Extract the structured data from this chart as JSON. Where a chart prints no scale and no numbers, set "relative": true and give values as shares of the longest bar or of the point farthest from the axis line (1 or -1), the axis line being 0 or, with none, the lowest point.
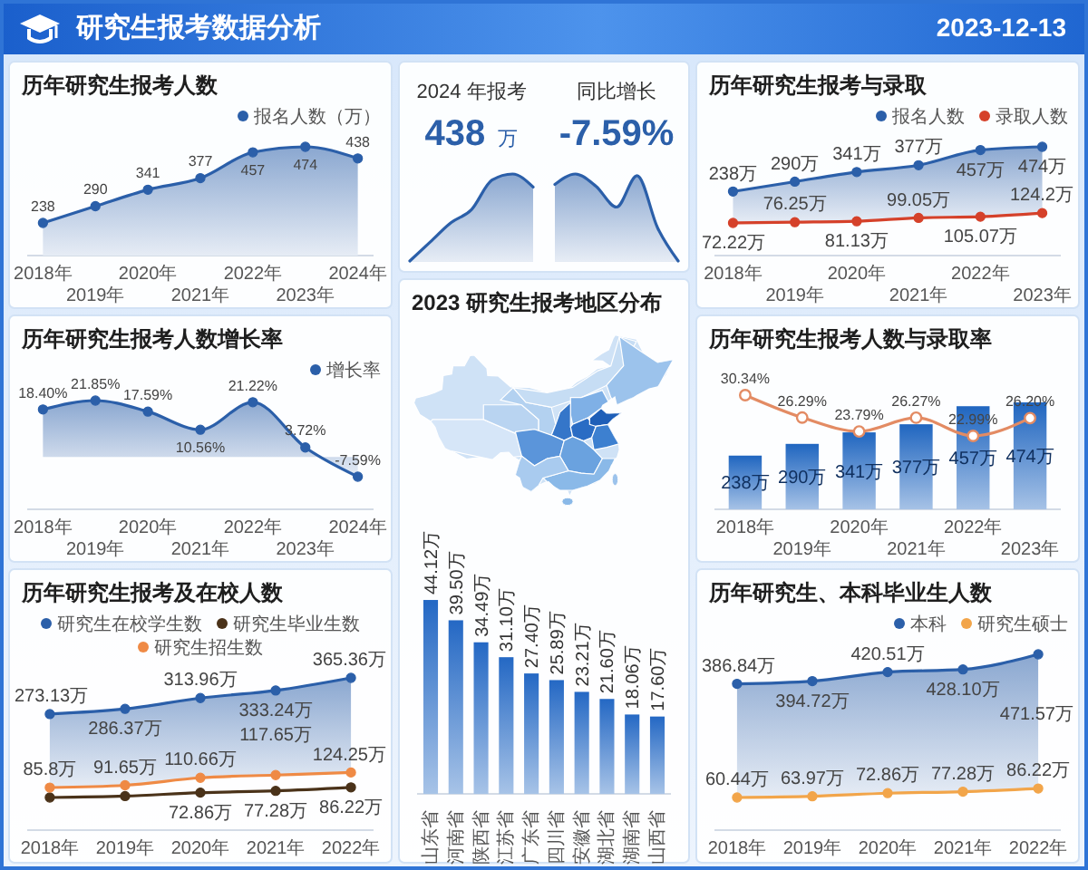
{
  "chart_data": [
    {
      "type": "other",
      "title": "研究生报考数据分析",
      "annotations": [
        "2023-12-13"
      ]
    },
    {
      "type": "area",
      "title": "历年研究生报考人数",
      "categories": [
        "2018年",
        "2019年",
        "2020年",
        "2021年",
        "2022年",
        "2023年",
        "2024年"
      ],
      "series": [
        {
          "name": "报名人数（万）",
          "color": "#2b5fa9",
          "values": [
            238,
            290,
            341,
            377,
            457,
            474,
            438
          ]
        }
      ],
      "tick_labels": "x",
      "data_labels": true,
      "legend": "top right",
      "marker": "circle"
    },
    {
      "type": "area",
      "title": "2024 年报考",
      "annotations": [
        "438 万"
      ],
      "categories": [
        null,
        null,
        null,
        null,
        null,
        null,
        null
      ],
      "relative": true,
      "values": [
        0,
        0.22,
        0.44,
        0.59,
        0.93,
        1,
        0.85
      ],
      "color": "#2b5fa9",
      "tick_labels": false
    },
    {
      "type": "area",
      "title": "同比增长",
      "annotations": [
        "-7.59%"
      ],
      "categories": [
        null,
        null,
        null,
        null,
        null,
        null,
        null
      ],
      "relative": true,
      "values": [
        0.88,
        1,
        0.86,
        0.62,
        0.98,
        0.38,
        0
      ],
      "color": "#2b5fa9",
      "tick_labels": false
    },
    {
      "type": "area",
      "title": "历年研究生报考与录取",
      "categories": [
        "2018年",
        "2019年",
        "2020年",
        "2021年",
        "2022年",
        "2023年"
      ],
      "series": [
        {
          "name": "报名人数",
          "color": "#2b5fa9",
          "values": [
            238,
            290,
            341,
            377,
            457,
            474
          ],
          "value_labels": [
            "238万",
            "290万",
            "341万",
            "377万",
            "457万",
            "474万"
          ]
        },
        {
          "type": "line",
          "name": "录取人数",
          "color": "#d5412a",
          "values": [
            72.22,
            76.25,
            81.13,
            99.05,
            105.07,
            124.2
          ],
          "value_labels": [
            "72.22万",
            "76.25万",
            "81.13万",
            "99.05万",
            "105.07万",
            "124.2万"
          ]
        }
      ],
      "tick_labels": "x",
      "legend": "top right",
      "marker": "circle"
    },
    {
      "type": "area",
      "title": "历年研究生报考人数增长率",
      "categories": [
        "2018年",
        "2019年",
        "2020年",
        "2021年",
        "2022年",
        "2023年",
        "2024年"
      ],
      "series": [
        {
          "name": "增长率",
          "color": "#2b5fa9",
          "values": [
            18.4,
            21.85,
            17.59,
            10.56,
            21.22,
            3.72,
            -7.59
          ],
          "value_labels": [
            "18.40%",
            "21.85%",
            "17.59%",
            "10.56%",
            "21.22%",
            "3.72%",
            "-7.59%"
          ]
        }
      ],
      "tick_labels": "x",
      "legend": "top right",
      "marker": "circle"
    },
    {
      "type": "bar",
      "title": "2023 研究生报考地区分布",
      "categories": [
        "山东省",
        "河南省",
        "陕西省",
        "江苏省",
        "广东省",
        "四川省",
        "安徽省",
        "湖北省",
        "湖南省",
        "山西省"
      ],
      "values": [
        44.12,
        39.5,
        34.49,
        31.1,
        27.4,
        25.89,
        23.21,
        21.6,
        18.06,
        17.6
      ],
      "value_labels": [
        "44.12万",
        "39.50万",
        "34.49万",
        "31.10万",
        "27.40万",
        "25.89万",
        "23.21万",
        "21.60万",
        "18.06万",
        "17.60万"
      ],
      "color": "#2468c4",
      "tick_labels": "x"
    },
    {
      "type": "bar",
      "title": "历年研究生报考人数与录取率",
      "categories": [
        "2018年",
        "2019年",
        "2020年",
        "2021年",
        "2022年",
        "2023年"
      ],
      "series": [
        {
          "type": "bar",
          "color": "#2066c0",
          "values": [
            238,
            290,
            341,
            377,
            457,
            474
          ],
          "value_labels": [
            "238万",
            "290万",
            "341万",
            "377万",
            "457万",
            "474万"
          ]
        },
        {
          "type": "line",
          "axis": "y2",
          "color": "#e38b63",
          "marker": "circle",
          "values": [
            30.34,
            26.29,
            23.79,
            26.27,
            22.99,
            26.2
          ],
          "value_labels": [
            "30.34%",
            "26.29%",
            "23.79%",
            "26.27%",
            "22.99%",
            "26.20%"
          ]
        }
      ],
      "tick_labels": "x"
    },
    {
      "type": "area",
      "title": "历年研究生报考及在校人数",
      "categories": [
        "2018年",
        "2019年",
        "2020年",
        "2021年",
        "2022年"
      ],
      "series": [
        {
          "name": "研究生在校学生数",
          "color": "#2b5fa9",
          "values": [
            273.13,
            286.37,
            313.96,
            333.24,
            365.36
          ],
          "value_labels": [
            "273.13万",
            "286.37万",
            "313.96万",
            "333.24万",
            "365.36万"
          ]
        },
        {
          "type": "line",
          "name": "研究生毕业生数",
          "color": "#4a3219",
          "values": [
            60.44,
            63.97,
            72.86,
            77.28,
            86.22
          ],
          "value_labels": [
            null,
            null,
            "72.86万",
            "77.28万",
            "86.22万"
          ]
        },
        {
          "type": "line",
          "name": "研究生招生数",
          "color": "#ef8a45",
          "values": [
            85.8,
            91.65,
            110.66,
            117.65,
            124.25
          ],
          "value_labels": [
            "85.8万",
            "91.65万",
            "110.66万",
            "117.65万",
            "124.25万"
          ]
        }
      ],
      "tick_labels": "x",
      "legend": "top",
      "marker": "circle"
    },
    {
      "type": "area",
      "title": "历年研究生、本科毕业生人数",
      "categories": [
        "2018年",
        "2019年",
        "2020年",
        "2021年",
        "2022年"
      ],
      "series": [
        {
          "name": "本科",
          "color": "#2b5fa9",
          "values": [
            386.84,
            394.72,
            420.51,
            428.1,
            471.57
          ],
          "value_labels": [
            "386.84万",
            "394.72万",
            "420.51万",
            "428.10万",
            "471.57万"
          ]
        },
        {
          "type": "line",
          "name": "研究生硕士",
          "color": "#f2a54a",
          "values": [
            60.44,
            63.97,
            72.86,
            77.28,
            86.22
          ],
          "value_labels": [
            "60.44万",
            "63.97万",
            "72.86万",
            "77.28万",
            "86.22万"
          ]
        }
      ],
      "tick_labels": "x",
      "legend": "top right",
      "marker": "circle"
    }
  ]
}
